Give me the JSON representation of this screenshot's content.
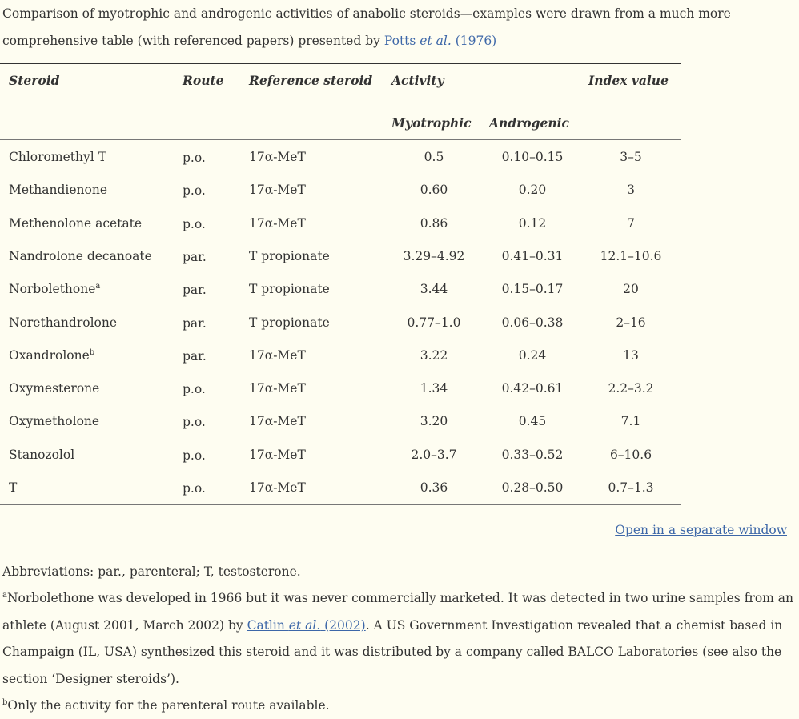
{
  "caption": {
    "text": "Comparison of myotrophic and androgenic activities of anabolic steroids—examples were drawn from a much more comprehensive table (with referenced papers) presented by ",
    "link_author": "Potts ",
    "link_etal": "et al.",
    "link_year": " (1976)"
  },
  "table": {
    "headers": {
      "steroid": "Steroid",
      "route": "Route",
      "reference": "Reference steroid",
      "activity": "Activity",
      "myotrophic": "Myotrophic",
      "androgenic": "Androgenic",
      "index": "Index value"
    },
    "rows": [
      {
        "steroid": "Chloromethyl T",
        "sup": "",
        "route": "p.o.",
        "reference": "17α-MeT",
        "myotrophic": "0.5",
        "androgenic": "0.10–0.15",
        "index": "3–5"
      },
      {
        "steroid": "Methandienone",
        "sup": "",
        "route": "p.o.",
        "reference": "17α-MeT",
        "myotrophic": "0.60",
        "androgenic": "0.20",
        "index": "3"
      },
      {
        "steroid": "Methenolone acetate",
        "sup": "",
        "route": "p.o.",
        "reference": "17α-MeT",
        "myotrophic": "0.86",
        "androgenic": "0.12",
        "index": "7"
      },
      {
        "steroid": "Nandrolone decanoate",
        "sup": "",
        "route": "par.",
        "reference": "T propionate",
        "myotrophic": "3.29–4.92",
        "androgenic": "0.41–0.31",
        "index": "12.1–10.6"
      },
      {
        "steroid": "Norbolethone",
        "sup": "a",
        "route": "par.",
        "reference": "T propionate",
        "myotrophic": "3.44",
        "androgenic": "0.15–0.17",
        "index": "20"
      },
      {
        "steroid": "Norethandrolone",
        "sup": "",
        "route": "par.",
        "reference": "T propionate",
        "myotrophic": "0.77–1.0",
        "androgenic": "0.06–0.38",
        "index": "2–16"
      },
      {
        "steroid": "Oxandrolone",
        "sup": "b",
        "route": "par.",
        "reference": "17α-MeT",
        "myotrophic": "3.22",
        "androgenic": "0.24",
        "index": "13"
      },
      {
        "steroid": "Oxymesterone",
        "sup": "",
        "route": "p.o.",
        "reference": "17α-MeT",
        "myotrophic": "1.34",
        "androgenic": "0.42–0.61",
        "index": "2.2–3.2"
      },
      {
        "steroid": "Oxymetholone",
        "sup": "",
        "route": "p.o.",
        "reference": "17α-MeT",
        "myotrophic": "3.20",
        "androgenic": "0.45",
        "index": "7.1"
      },
      {
        "steroid": "Stanozolol",
        "sup": "",
        "route": "p.o.",
        "reference": "17α-MeT",
        "myotrophic": "2.0–3.7",
        "androgenic": "0.33–0.52",
        "index": "6–10.6"
      },
      {
        "steroid": "T",
        "sup": "",
        "route": "p.o.",
        "reference": "17α-MeT",
        "myotrophic": "0.36",
        "androgenic": "0.28–0.50",
        "index": "0.7–1.3"
      }
    ]
  },
  "open_window_link": "Open in a separate window",
  "footnotes": {
    "abbreviations": "Abbreviations: par., parenteral; T, testosterone.",
    "a_marker": "a",
    "a_text_1": "Norbolethone was developed in 1966 but it was never commercially marketed. It was detected in two urine samples from an athlete (August 2001, March 2002) by ",
    "a_link_author": "Catlin ",
    "a_link_etal": "et al.",
    "a_link_year": " (2002)",
    "a_text_2": ". A US Government Investigation revealed that a chemist based in Champaign (IL, USA) synthesized this steroid and it was distributed by a company called BALCO Laboratories (see also the section ‘Designer steroids’).",
    "b_marker": "b",
    "b_text": "Only the activity for the parenteral route available."
  },
  "colors": {
    "background": "#fefdf1",
    "text": "#333333",
    "link": "#3d67a8"
  }
}
